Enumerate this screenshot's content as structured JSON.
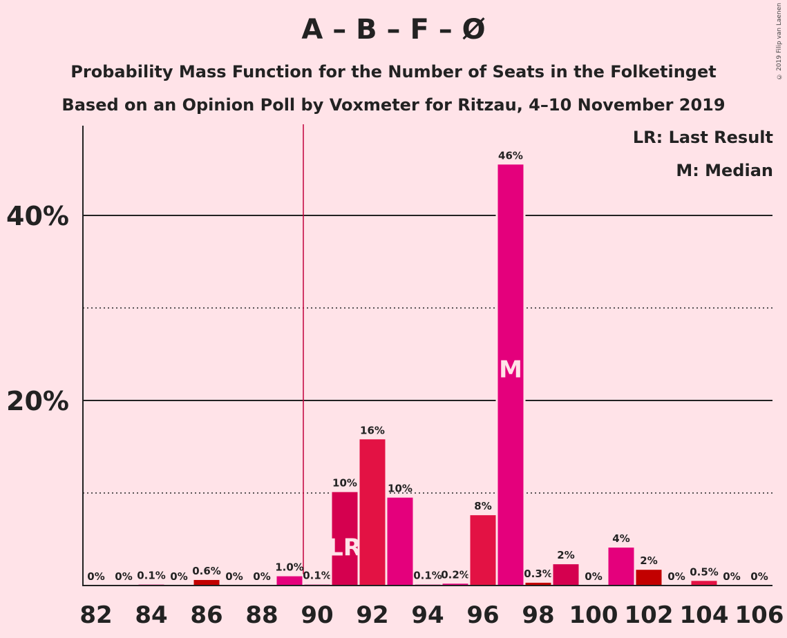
{
  "chart_data": {
    "type": "bar",
    "title": "A – B – F – Ø",
    "subtitle1": "Probability Mass Function for the Number of Seats in the Folketinget",
    "subtitle2": "Based on an Opinion Poll by Voxmeter for Ritzau, 4–10 November 2019",
    "copyright": "© 2019 Filip van Laenen",
    "legend": [
      "LR: Last Result",
      "M: Median"
    ],
    "ylim": [
      0,
      50
    ],
    "major_ticks": [
      20,
      40
    ],
    "major_tick_labels": [
      "20%",
      "40%"
    ],
    "minor_gridlines": [
      10,
      30
    ],
    "x_tick_labels": [
      "82",
      "84",
      "86",
      "88",
      "90",
      "92",
      "94",
      "96",
      "98",
      "100",
      "102",
      "104",
      "106"
    ],
    "x_ticks": [
      82,
      84,
      86,
      88,
      90,
      92,
      94,
      96,
      98,
      100,
      102,
      104,
      106
    ],
    "majority_line": 89.5,
    "bars": [
      {
        "seats": 82,
        "value": 0.0,
        "label": "0%",
        "color": "#e4007c"
      },
      {
        "seats": 83,
        "value": 0.0,
        "label": "0%",
        "color": "#e4007c"
      },
      {
        "seats": 84,
        "value": 0.1,
        "label": "0.1%",
        "color": "#e4007c"
      },
      {
        "seats": 85,
        "value": 0.0,
        "label": "0%",
        "color": "#e4007c"
      },
      {
        "seats": 86,
        "value": 0.6,
        "label": "0.6%",
        "color": "#c20000"
      },
      {
        "seats": 87,
        "value": 0.0,
        "label": "0%",
        "color": "#e4007c"
      },
      {
        "seats": 88,
        "value": 0.0,
        "label": "0%",
        "color": "#e4007c"
      },
      {
        "seats": 89,
        "value": 1.0,
        "label": "1.0%",
        "color": "#e4007c"
      },
      {
        "seats": 90,
        "value": 0.1,
        "label": "0.1%",
        "color": "#e4007c"
      },
      {
        "seats": 91,
        "value": 10.1,
        "label": "10%",
        "color": "#d5004f",
        "marker": "LR"
      },
      {
        "seats": 92,
        "value": 15.8,
        "label": "16%",
        "color": "#e31244"
      },
      {
        "seats": 93,
        "value": 9.5,
        "label": "10%",
        "color": "#e4007c"
      },
      {
        "seats": 94,
        "value": 0.1,
        "label": "0.1%",
        "color": "#e4007c"
      },
      {
        "seats": 95,
        "value": 0.2,
        "label": "0.2%",
        "color": "#e4007c"
      },
      {
        "seats": 96,
        "value": 7.6,
        "label": "8%",
        "color": "#e31244"
      },
      {
        "seats": 97,
        "value": 45.5,
        "label": "46%",
        "color": "#e4007c",
        "marker": "M"
      },
      {
        "seats": 98,
        "value": 0.3,
        "label": "0.3%",
        "color": "#c20000"
      },
      {
        "seats": 99,
        "value": 2.3,
        "label": "2%",
        "color": "#d5004f"
      },
      {
        "seats": 100,
        "value": 0.0,
        "label": "0%",
        "color": "#e4007c"
      },
      {
        "seats": 101,
        "value": 4.1,
        "label": "4%",
        "color": "#e4007c"
      },
      {
        "seats": 102,
        "value": 1.7,
        "label": "2%",
        "color": "#c20000"
      },
      {
        "seats": 103,
        "value": 0.0,
        "label": "0%",
        "color": "#e4007c"
      },
      {
        "seats": 104,
        "value": 0.5,
        "label": "0.5%",
        "color": "#e31244"
      },
      {
        "seats": 105,
        "value": 0.0,
        "label": "0%",
        "color": "#e4007c"
      },
      {
        "seats": 106,
        "value": 0.0,
        "label": "0%",
        "color": "#e4007c"
      }
    ]
  }
}
